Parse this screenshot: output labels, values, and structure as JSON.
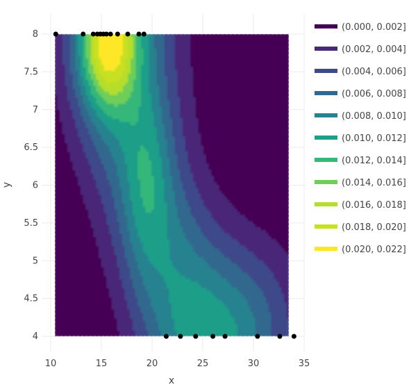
{
  "chart_data": {
    "type": "contour",
    "xlabel": "x",
    "ylabel": "y",
    "xlim": [
      10,
      35
    ],
    "ylim": [
      4,
      8
    ],
    "x_ticks": [
      10,
      15,
      20,
      25,
      30,
      35
    ],
    "x_tick_labels": [
      "10",
      "15",
      "20",
      "25",
      "30",
      "35"
    ],
    "y_ticks": [
      4,
      4.5,
      5,
      5.5,
      6,
      6.5,
      7,
      7.5,
      8
    ],
    "y_tick_labels": [
      "4",
      "4.5",
      "5",
      "5.5",
      "6",
      "6.5",
      "7",
      "7.5",
      "8"
    ],
    "grid": true,
    "legend_position": "right",
    "contour_bands": [
      {
        "label": "(0.000, 0.002]",
        "lo": 0.0,
        "hi": 0.002,
        "color": "#440154"
      },
      {
        "label": "(0.002, 0.004]",
        "lo": 0.002,
        "hi": 0.004,
        "color": "#482878"
      },
      {
        "label": "(0.004, 0.006]",
        "lo": 0.004,
        "hi": 0.006,
        "color": "#3e4989"
      },
      {
        "label": "(0.006, 0.008]",
        "lo": 0.006,
        "hi": 0.008,
        "color": "#31688e"
      },
      {
        "label": "(0.008, 0.010]",
        "lo": 0.008,
        "hi": 0.01,
        "color": "#26828e"
      },
      {
        "label": "(0.010, 0.012]",
        "lo": 0.01,
        "hi": 0.012,
        "color": "#1f9e89"
      },
      {
        "label": "(0.012, 0.014]",
        "lo": 0.012,
        "hi": 0.014,
        "color": "#35b779"
      },
      {
        "label": "(0.014, 0.016]",
        "lo": 0.014,
        "hi": 0.016,
        "color": "#6ece58"
      },
      {
        "label": "(0.016, 0.018]",
        "lo": 0.016,
        "hi": 0.018,
        "color": "#b5de2b"
      },
      {
        "label": "(0.018, 0.020]",
        "lo": 0.018,
        "hi": 0.02,
        "color": "#c8e020"
      },
      {
        "label": "(0.020, 0.022]",
        "lo": 0.02,
        "hi": 0.022,
        "color": "#fde725"
      }
    ],
    "points": [
      {
        "x": 10.5,
        "y": 8
      },
      {
        "x": 13.2,
        "y": 8
      },
      {
        "x": 14.2,
        "y": 8
      },
      {
        "x": 14.6,
        "y": 8
      },
      {
        "x": 14.9,
        "y": 8
      },
      {
        "x": 15.2,
        "y": 8
      },
      {
        "x": 15.5,
        "y": 8
      },
      {
        "x": 15.9,
        "y": 8
      },
      {
        "x": 16.6,
        "y": 8
      },
      {
        "x": 17.6,
        "y": 8
      },
      {
        "x": 18.7,
        "y": 8
      },
      {
        "x": 19.2,
        "y": 8
      },
      {
        "x": 21.4,
        "y": 4
      },
      {
        "x": 22.8,
        "y": 4
      },
      {
        "x": 24.3,
        "y": 4
      },
      {
        "x": 26.0,
        "y": 4
      },
      {
        "x": 27.2,
        "y": 4
      },
      {
        "x": 30.4,
        "y": 4
      },
      {
        "x": 32.6,
        "y": 4
      },
      {
        "x": 34.0,
        "y": 4
      }
    ]
  }
}
